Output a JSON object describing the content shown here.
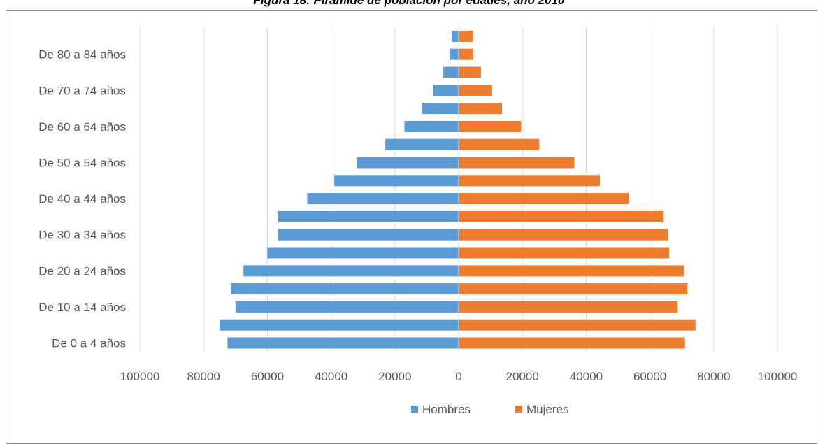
{
  "title": "Figura 18: Pirámide de población por edades, año 2010",
  "chart_data": {
    "type": "bar",
    "orientation": "horizontal",
    "title": "Figura 18: Pirámide de población por edades, año 2010",
    "categories": [
      "De 0 a 4 años",
      "",
      "De 10 a 14 años",
      "",
      "De 20 a 24 años",
      "",
      "De 30 a 34 años",
      "",
      "De 40 a 44 años",
      "",
      "De 50 a 54 años",
      "",
      "De 60 a 64 años",
      "",
      "De 70 a 74 años",
      "",
      "De 80 a 84 años",
      ""
    ],
    "series": [
      {
        "name": "Hombres",
        "color": "#5b9bd5",
        "values": [
          -72500,
          -75000,
          -70000,
          -71500,
          -67500,
          -60000,
          -56800,
          -56800,
          -47500,
          -39000,
          -32000,
          -23000,
          -17000,
          -11500,
          -8000,
          -4800,
          -2800,
          -2200
        ]
      },
      {
        "name": "Mujeres",
        "color": "#ed7d31",
        "values": [
          71000,
          74300,
          68700,
          71800,
          70700,
          66000,
          65600,
          64300,
          53400,
          44300,
          36300,
          25300,
          19600,
          13600,
          10500,
          7000,
          4600,
          4500
        ]
      }
    ],
    "xaxis_ticks": [
      "100000",
      "80000",
      "60000",
      "40000",
      "20000",
      "0",
      "20000",
      "40000",
      "60000",
      "80000",
      "100000"
    ],
    "xlim": [
      -100000,
      100000
    ],
    "grid": "vertical",
    "legend": "bottom"
  }
}
